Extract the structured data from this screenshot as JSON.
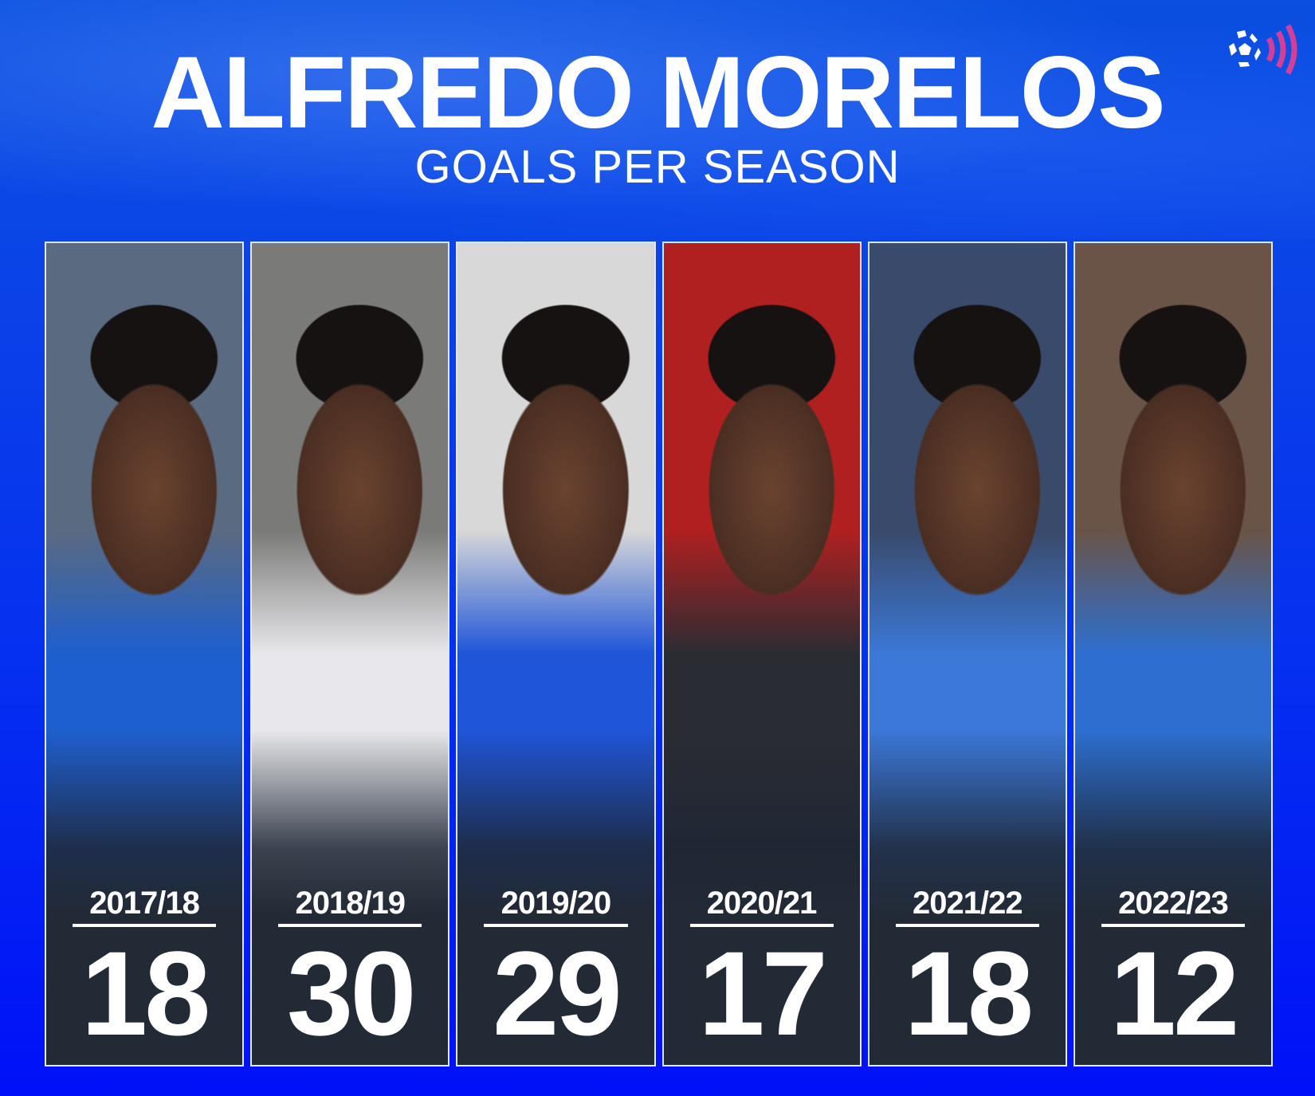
{
  "header": {
    "title": "ALFREDO MORELOS",
    "subtitle": "GOALS PER SEASON"
  },
  "logo": {
    "icon": "football-broadcast-icon",
    "colors": {
      "ball": "#ffffff",
      "waves": "#d0409a"
    }
  },
  "colors": {
    "background": "#0530f0",
    "panel_bottom": "#222a36",
    "text": "#ffffff"
  },
  "seasons": [
    {
      "season": "2017/18",
      "goals": "18",
      "photo_colors": [
        "#5a6a80",
        "#1e5fd0"
      ]
    },
    {
      "season": "2018/19",
      "goals": "30",
      "photo_colors": [
        "#7a7a78",
        "#e8e8ec"
      ]
    },
    {
      "season": "2019/20",
      "goals": "29",
      "photo_colors": [
        "#d8d8d8",
        "#1f55d8"
      ]
    },
    {
      "season": "2020/21",
      "goals": "17",
      "photo_colors": [
        "#b02020",
        "#2a2c33"
      ]
    },
    {
      "season": "2021/22",
      "goals": "18",
      "photo_colors": [
        "#3a4a6a",
        "#3b78d8"
      ]
    },
    {
      "season": "2022/23",
      "goals": "12",
      "photo_colors": [
        "#6a5448",
        "#2d6fd0"
      ]
    }
  ]
}
